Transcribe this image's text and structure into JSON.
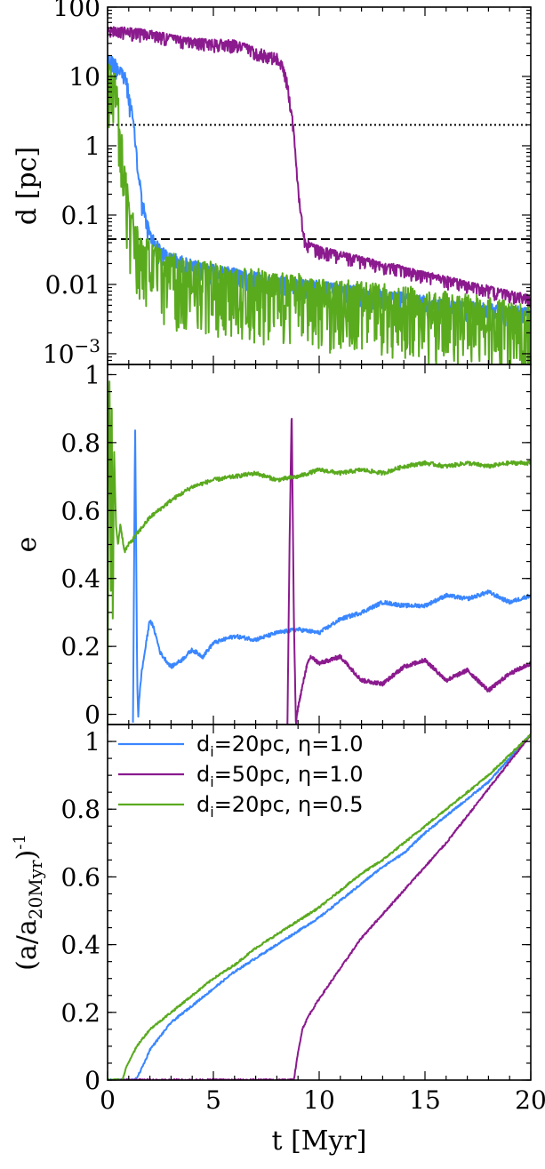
{
  "chart_data": [
    {
      "type": "line",
      "panel": "top",
      "ylabel": "d [pc]",
      "yscale": "log",
      "xlim": [
        0,
        20
      ],
      "ylim": [
        0.0007,
        100
      ],
      "yticks": [
        {
          "v": 100,
          "label": "100"
        },
        {
          "v": 10,
          "label": "10"
        },
        {
          "v": 1,
          "label": "1"
        },
        {
          "v": 0.1,
          "label": "0.1"
        },
        {
          "v": 0.01,
          "label": "0.01"
        },
        {
          "v": 0.001,
          "label": "10",
          "sup": "−3"
        }
      ],
      "reference_lines": [
        {
          "y": 2.0,
          "style": "dotted"
        },
        {
          "y": 0.045,
          "style": "dashed"
        }
      ],
      "series": [
        {
          "color": "#3a86ff",
          "noise": 0.1,
          "x": [
            0,
            0.3,
            0.6,
            0.9,
            1.0,
            1.2,
            1.4,
            1.6,
            1.8,
            2.0,
            2.5,
            3,
            4,
            5,
            6,
            8,
            10,
            12,
            14,
            16,
            18,
            20
          ],
          "y": [
            20,
            19,
            15,
            10,
            6,
            2.5,
            0.6,
            0.2,
            0.1,
            0.06,
            0.035,
            0.028,
            0.022,
            0.019,
            0.017,
            0.013,
            0.011,
            0.009,
            0.0075,
            0.006,
            0.0052,
            0.0045
          ]
        },
        {
          "color": "#8b1a8e",
          "noise": 0.06,
          "x": [
            0,
            1,
            2,
            3,
            4,
            5,
            6,
            7,
            7.5,
            8,
            8.3,
            8.6,
            8.8,
            8.9,
            9.0,
            9.1,
            9.3,
            9.6,
            10,
            11,
            12,
            13,
            14,
            15,
            16,
            17,
            18,
            19,
            20
          ],
          "y": [
            52,
            50,
            46,
            40,
            35,
            34,
            33,
            26,
            23,
            21,
            15,
            5,
            1.6,
            0.6,
            0.3,
            0.12,
            0.05,
            0.04,
            0.035,
            0.03,
            0.025,
            0.021,
            0.018,
            0.015,
            0.013,
            0.011,
            0.0095,
            0.008,
            0.007
          ]
        },
        {
          "color": "#5aaa1e",
          "noise": 0.35,
          "x": [
            0,
            0.2,
            0.4,
            0.6,
            0.8,
            1.0,
            1.3,
            1.6,
            2,
            2.5,
            3,
            4,
            5,
            6,
            8,
            10,
            12,
            14,
            16,
            18,
            20
          ],
          "y": [
            20,
            18,
            8,
            2,
            0.5,
            0.15,
            0.07,
            0.05,
            0.04,
            0.03,
            0.026,
            0.022,
            0.019,
            0.017,
            0.014,
            0.012,
            0.01,
            0.0085,
            0.007,
            0.006,
            0.005
          ]
        }
      ]
    },
    {
      "type": "line",
      "panel": "middle",
      "ylabel": "e",
      "xlim": [
        0,
        20
      ],
      "ylim": [
        -0.03,
        1.03
      ],
      "yticks": [
        {
          "v": 1,
          "label": "1"
        },
        {
          "v": 0.8,
          "label": "0.8"
        },
        {
          "v": 0.6,
          "label": "0.6"
        },
        {
          "v": 0.4,
          "label": "0.4"
        },
        {
          "v": 0.2,
          "label": "0.2"
        },
        {
          "v": 0,
          "label": "0"
        }
      ],
      "series": [
        {
          "color": "#3a86ff",
          "noise": 0.006,
          "x": [
            1.2,
            1.25,
            1.3,
            1.35,
            1.4,
            1.45,
            1.5,
            1.6,
            1.8,
            2.0,
            2.2,
            2.5,
            3.0,
            3.5,
            4,
            4.5,
            5,
            6,
            7,
            8,
            9,
            10,
            11,
            12,
            13,
            14,
            15,
            16,
            17,
            18,
            19,
            20
          ],
          "y": [
            -0.03,
            0.4,
            0.87,
            0.5,
            0.1,
            -0.01,
            0.05,
            0.12,
            0.2,
            0.28,
            0.25,
            0.18,
            0.14,
            0.16,
            0.19,
            0.17,
            0.21,
            0.23,
            0.22,
            0.24,
            0.25,
            0.24,
            0.28,
            0.3,
            0.33,
            0.32,
            0.32,
            0.35,
            0.34,
            0.36,
            0.33,
            0.35
          ]
        },
        {
          "color": "#8b1a8e",
          "noise": 0.006,
          "x": [
            8.5,
            8.6,
            8.7,
            8.8,
            8.9,
            9.0,
            9.2,
            9.4,
            9.6,
            10,
            11,
            12,
            13,
            14,
            15,
            16,
            17,
            18,
            19,
            20
          ],
          "y": [
            -0.03,
            0.5,
            0.9,
            0.3,
            -0.03,
            0.02,
            0.08,
            0.14,
            0.17,
            0.15,
            0.17,
            0.1,
            0.09,
            0.14,
            0.16,
            0.1,
            0.13,
            0.07,
            0.12,
            0.15
          ]
        },
        {
          "color": "#5aaa1e",
          "noise": 0.006,
          "x": [
            0.0,
            0.05,
            0.1,
            0.15,
            0.2,
            0.25,
            0.3,
            0.4,
            0.5,
            0.6,
            0.8,
            1.0,
            1.5,
            2,
            3,
            4,
            5,
            6,
            7,
            8,
            9,
            10,
            11,
            12,
            13,
            14,
            15,
            16,
            17,
            18,
            19,
            20
          ],
          "y": [
            -0.03,
            0.9,
            1.0,
            0.3,
            0.9,
            0.2,
            0.8,
            0.55,
            0.5,
            0.56,
            0.48,
            0.5,
            0.54,
            0.58,
            0.63,
            0.67,
            0.69,
            0.7,
            0.71,
            0.69,
            0.7,
            0.72,
            0.71,
            0.72,
            0.71,
            0.73,
            0.74,
            0.73,
            0.74,
            0.73,
            0.74,
            0.74
          ]
        }
      ]
    },
    {
      "type": "line",
      "panel": "bottom",
      "xlabel": "t [Myr]",
      "ylabel": "(a/a",
      "ylabel_sub": "20Myr",
      "ylabel_sup": "-1",
      "xlim": [
        0,
        20
      ],
      "ylim": [
        0,
        1.05
      ],
      "xticks": [
        0,
        5,
        10,
        15,
        20
      ],
      "yticks": [
        {
          "v": 1,
          "label": "1"
        },
        {
          "v": 0.8,
          "label": "0.8"
        },
        {
          "v": 0.6,
          "label": "0.6"
        },
        {
          "v": 0.4,
          "label": "0.4"
        },
        {
          "v": 0.2,
          "label": "0.2"
        },
        {
          "v": 0,
          "label": "0"
        }
      ],
      "legend": {
        "position": "top-left",
        "entries": [
          {
            "label": "d",
            "sub": "i",
            "rest": "=20pc, η=1.0",
            "color": "#3a86ff"
          },
          {
            "label": "d",
            "sub": "i",
            "rest": "=50pc, η=1.0",
            "color": "#8b1a8e"
          },
          {
            "label": "d",
            "sub": "i",
            "rest": "=20pc, η=0.5",
            "color": "#5aaa1e"
          }
        ]
      },
      "series": [
        {
          "color": "#3a86ff",
          "noise": 0.003,
          "x": [
            0,
            1.3,
            1.5,
            1.8,
            2.0,
            2.5,
            3,
            4,
            5,
            6,
            7,
            8,
            9,
            10,
            11,
            12,
            13,
            14,
            15,
            16,
            17,
            18,
            19,
            20
          ],
          "y": [
            0,
            0,
            0.02,
            0.06,
            0.09,
            0.13,
            0.17,
            0.22,
            0.27,
            0.32,
            0.36,
            0.4,
            0.44,
            0.48,
            0.53,
            0.58,
            0.63,
            0.67,
            0.73,
            0.78,
            0.83,
            0.88,
            0.95,
            1.02
          ]
        },
        {
          "color": "#8b1a8e",
          "noise": 0.003,
          "x": [
            0,
            8.8,
            9.0,
            9.2,
            9.5,
            10,
            11,
            12,
            13,
            14,
            15,
            16,
            17,
            18,
            19,
            20
          ],
          "y": [
            0,
            0,
            0.08,
            0.15,
            0.19,
            0.24,
            0.33,
            0.42,
            0.49,
            0.56,
            0.63,
            0.7,
            0.78,
            0.86,
            0.94,
            1.02
          ]
        },
        {
          "color": "#5aaa1e",
          "noise": 0.003,
          "x": [
            0,
            0.7,
            0.9,
            1.2,
            1.5,
            2,
            3,
            4,
            5,
            6,
            7,
            8,
            9,
            10,
            11,
            12,
            13,
            14,
            15,
            16,
            17,
            18,
            19,
            20
          ],
          "y": [
            0,
            0,
            0.04,
            0.08,
            0.11,
            0.15,
            0.2,
            0.25,
            0.3,
            0.34,
            0.39,
            0.43,
            0.47,
            0.51,
            0.56,
            0.61,
            0.65,
            0.7,
            0.75,
            0.8,
            0.85,
            0.9,
            0.96,
            1.02
          ]
        }
      ]
    }
  ]
}
